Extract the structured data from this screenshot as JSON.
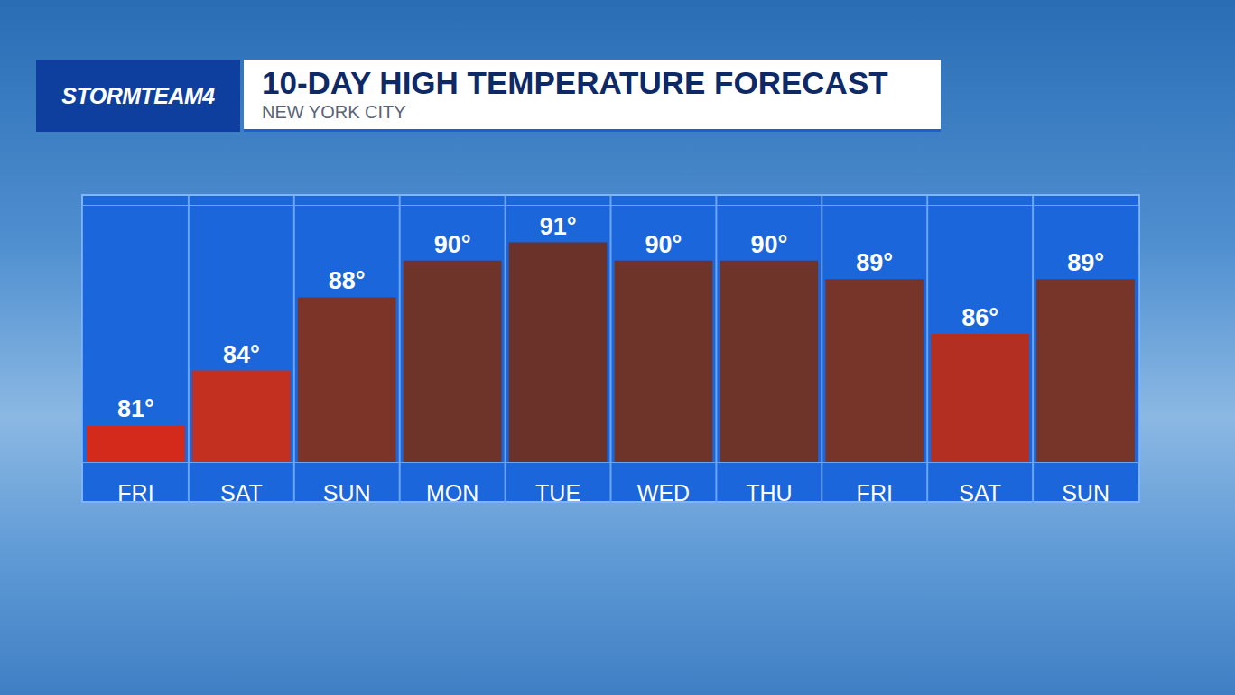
{
  "chart_data": {
    "type": "bar",
    "title": "10-DAY HIGH TEMPERATURE FORECAST",
    "subtitle": "NEW YORK CITY",
    "annotations": [
      "STORMTEAM4"
    ],
    "categories": [
      "FRI",
      "SAT",
      "SUN",
      "MON",
      "TUE",
      "WED",
      "THU",
      "FRI",
      "SAT",
      "SUN"
    ],
    "values": [
      81,
      84,
      88,
      90,
      91,
      90,
      90,
      89,
      86,
      89
    ],
    "value_labels": [
      "81°",
      "84°",
      "88°",
      "90°",
      "91°",
      "90°",
      "90°",
      "89°",
      "86°",
      "89°"
    ],
    "colors": [
      "#d32a1c",
      "#c4301f",
      "#7c3328",
      "#6e3329",
      "#6b3229",
      "#6e3329",
      "#6e3329",
      "#773429",
      "#b22f21",
      "#773429"
    ],
    "ylim": [
      79,
      93
    ],
    "tick_labels": "x",
    "data_labels": true,
    "grid": false
  }
}
